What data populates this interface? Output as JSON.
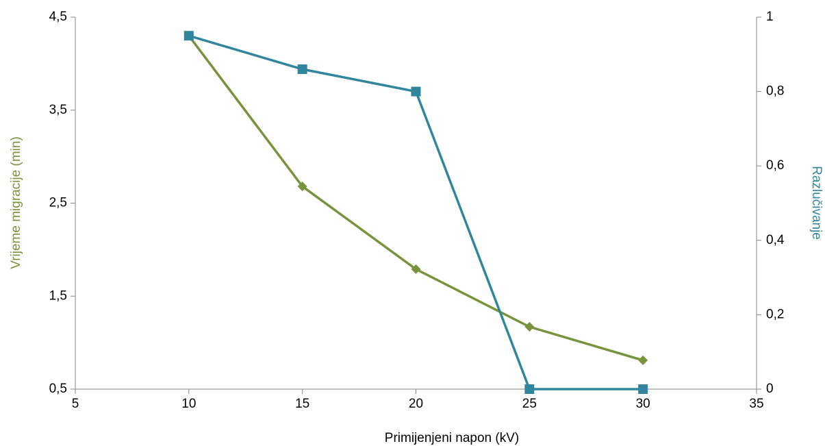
{
  "chart_data": {
    "type": "line",
    "x_label": "Primijenjeni napon (kV)",
    "y_label": "Vrijeme migracije (min)",
    "y2_label": "Razlučivanje",
    "x": [
      10,
      15,
      20,
      25,
      30
    ],
    "series": [
      {
        "color": "#77933c",
        "marker": "diamond",
        "values": [
          4.3,
          2.68,
          1.79,
          1.17,
          0.81
        ]
      },
      {
        "color": "#31859c",
        "marker": "square",
        "axis": "y2",
        "values": [
          0.95,
          0.86,
          0.8,
          0,
          0
        ]
      }
    ],
    "xlim": [
      5,
      35
    ],
    "xticks": [
      5,
      10,
      15,
      20,
      25,
      30,
      35
    ],
    "ylim": [
      0.5,
      4.5
    ],
    "yticks": [
      {
        "value": 0.5,
        "label": "0,5"
      },
      {
        "value": 1.5,
        "label": "1,5"
      },
      {
        "value": 2.5,
        "label": "2,5"
      },
      {
        "value": 3.5,
        "label": "3,5"
      },
      {
        "value": 4.5,
        "label": "4,5"
      }
    ],
    "y2lim": [
      0,
      1
    ],
    "y2ticks": [
      0,
      {
        "value": 0.2,
        "label": "0,2"
      },
      {
        "value": 0.4,
        "label": "0,4"
      },
      {
        "value": 0.6,
        "label": "0,6"
      },
      {
        "value": 0.8,
        "label": "0,8"
      },
      1
    ],
    "grid": false
  }
}
